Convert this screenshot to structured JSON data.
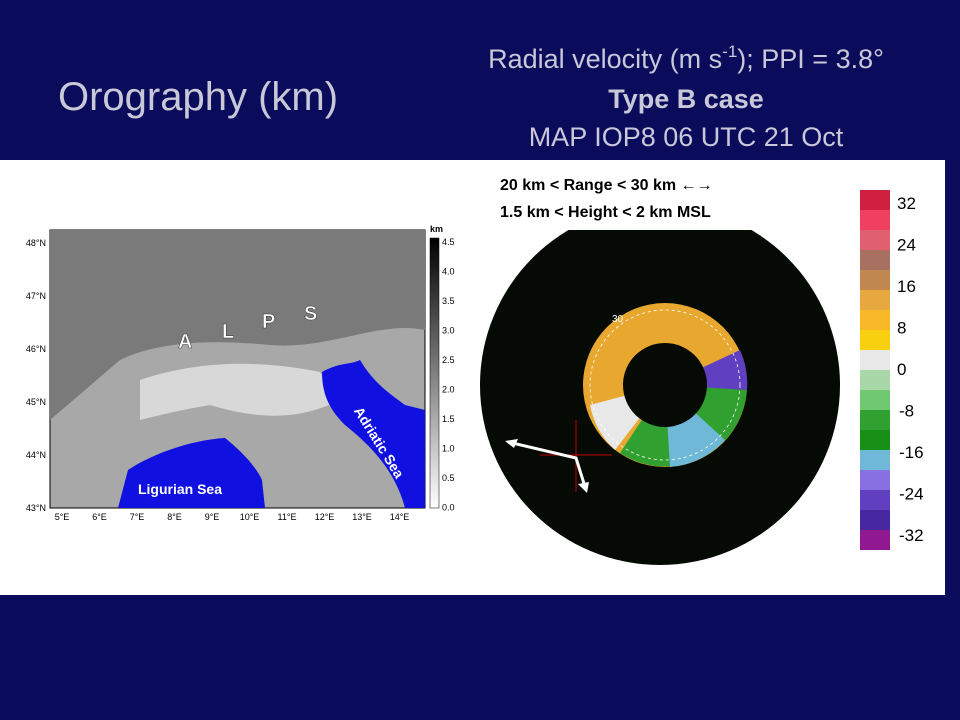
{
  "slide": {
    "left_title": "Orography (km)",
    "right_title": {
      "line1_before": "Radial velocity (m s",
      "line1_sup": "-1",
      "line1_after": "); PPI = 3.8°",
      "line2": "Type B case",
      "line3": "MAP IOP8 06 UTC 21 Oct"
    }
  },
  "orography_map": {
    "unit": "km",
    "scale_labels": [
      "4.5",
      "4.0",
      "3.5",
      "3.0",
      "2.5",
      "2.0",
      "1.5",
      "1.0",
      "0.5",
      "0.0"
    ],
    "lat_labels": [
      "48°N",
      "47°N",
      "46°N",
      "45°N",
      "44°N",
      "43°N"
    ],
    "lon_labels": [
      "5°E",
      "6°E",
      "7°E",
      "8°E",
      "9°E",
      "10°E",
      "11°E",
      "12°E",
      "13°E",
      "14°E"
    ],
    "alps_letters": [
      "A",
      "L",
      "P",
      "S"
    ],
    "adriatic": "Adriatic Sea",
    "ligurian": "Ligurian Sea"
  },
  "radar": {
    "box_line1": "20 km < Range < 30 km ←→",
    "box_line2": "1.5 km < Height < 2 km MSL",
    "ring_label": "30",
    "scale_labels": [
      "32",
      "24",
      "16",
      "8",
      "0",
      "-8",
      "-16",
      "-24",
      "-32"
    ]
  }
}
